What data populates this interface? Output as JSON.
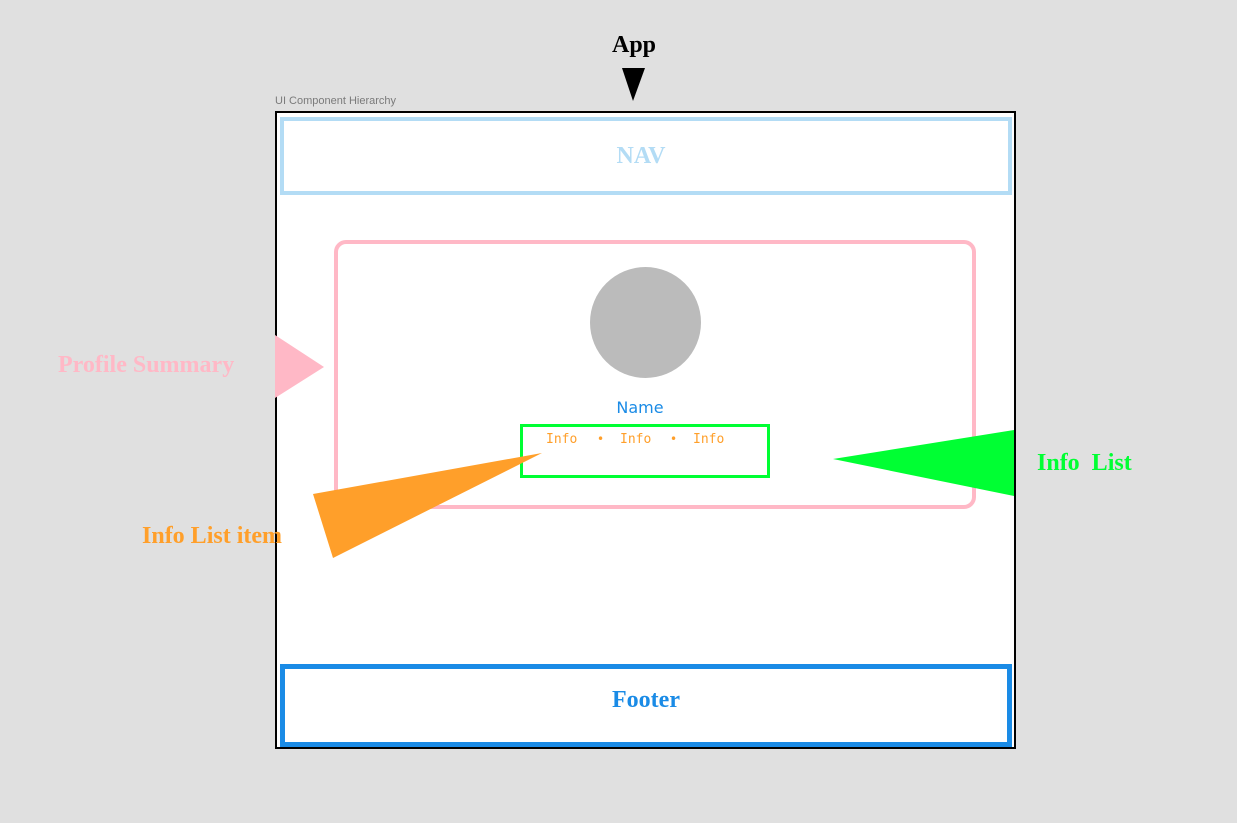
{
  "diagram": {
    "root_label": "App",
    "frame_caption": "UI Component Hierarchy",
    "nav_label": "NAV",
    "name_label": "Name",
    "info_items": [
      "Info",
      "Info",
      "Info"
    ],
    "footer_label": "Footer"
  },
  "callouts": {
    "profile_summary": "Profile Summary",
    "info_list_item": "Info List item",
    "info_list": "Info  List"
  },
  "colors": {
    "nav": "#b3dcf5",
    "profile": "#ffb8c6",
    "info_list": "#00ff33",
    "info_item": "#ff9f2a",
    "footer": "#1a8be6",
    "avatar": "#bbbbbb"
  }
}
